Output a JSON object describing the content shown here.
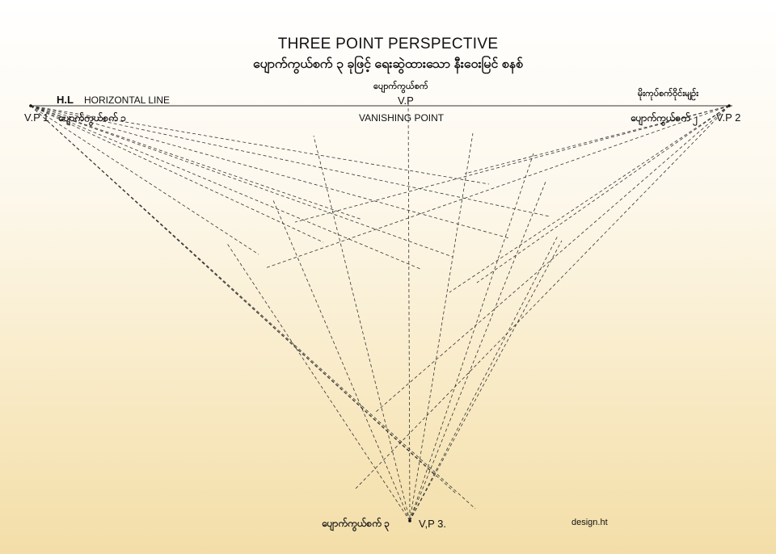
{
  "title": "THREE POINT PERSPECTIVE",
  "subtitle": "ပျောက်ကွယ်စက် ၃ ခုဖြင့် ရေးဆွဲထားသော နီးဝေးမြင် စနစ်",
  "labels": {
    "hl_short": "H.L",
    "hl_long": "HORIZONTAL LINE",
    "vp_top_burmese": "ပျောက်ကွယ်စက်",
    "vp_top": "V.P",
    "vanishing_point": "VANISHING POINT",
    "hl_burmese": "မိုးကုပ်စက်ဝိုင်းမျဉ်း",
    "vp1": "V.P 1",
    "vp1_burmese": "ပျောက်ကွယ်စက် ၁",
    "vp2": "V.P 2",
    "vp2_burmese": "ပျောက်ကွယ်စက် ၂",
    "vp3_burmese": "ပျောက်ကွယ်စက် ၃",
    "vp3": "V,P 3.",
    "credit": "design.ht"
  },
  "colors": {
    "line": "#333333",
    "background_top": "#ffffff",
    "background_bottom": "#f3dea8"
  }
}
